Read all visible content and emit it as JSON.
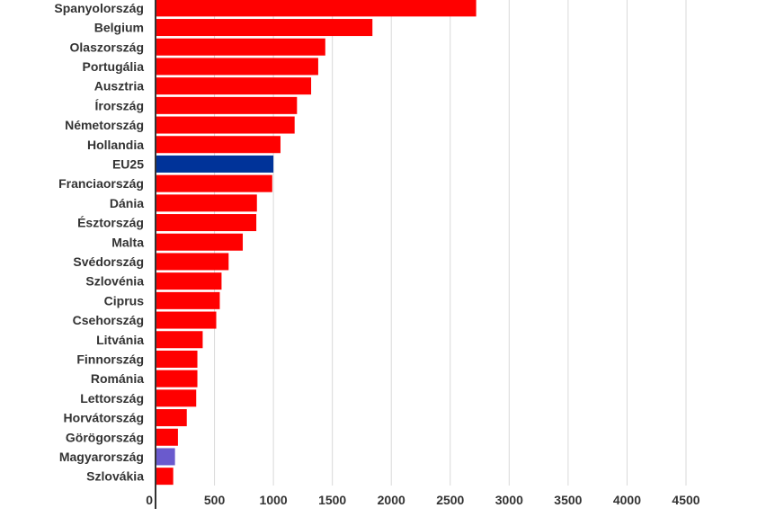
{
  "chart_data": {
    "type": "bar",
    "orientation": "horizontal",
    "categories": [
      "Spanyolország",
      "Belgium",
      "Olaszország",
      "Portugália",
      "Ausztria",
      "Írország",
      "Németország",
      "Hollandia",
      "EU25",
      "Franciaország",
      "Dánia",
      "Észtország",
      "Malta",
      "Svédország",
      "Szlovénia",
      "Ciprus",
      "Csehország",
      "Litvánia",
      "Finnország",
      "Románia",
      "Lettország",
      "Horvátország",
      "Görögország",
      "Magyarország",
      "Szlovákia"
    ],
    "values": [
      2720,
      1840,
      1440,
      1380,
      1320,
      1200,
      1180,
      1060,
      1000,
      990,
      860,
      855,
      740,
      620,
      560,
      545,
      515,
      400,
      355,
      355,
      345,
      265,
      190,
      165,
      150
    ],
    "colors": [
      "#ff0000",
      "#ff0000",
      "#ff0000",
      "#ff0000",
      "#ff0000",
      "#ff0000",
      "#ff0000",
      "#ff0000",
      "#003399",
      "#ff0000",
      "#ff0000",
      "#ff0000",
      "#ff0000",
      "#ff0000",
      "#ff0000",
      "#ff0000",
      "#ff0000",
      "#ff0000",
      "#ff0000",
      "#ff0000",
      "#ff0000",
      "#ff0000",
      "#ff0000",
      "#6a5acd",
      "#ff0000"
    ],
    "xticks": [
      0,
      500,
      1000,
      1500,
      2000,
      2500,
      3000,
      3500,
      4000,
      4500
    ],
    "xlim": [
      0,
      4500
    ],
    "grid": true,
    "title": "",
    "xlabel": "",
    "ylabel": ""
  }
}
